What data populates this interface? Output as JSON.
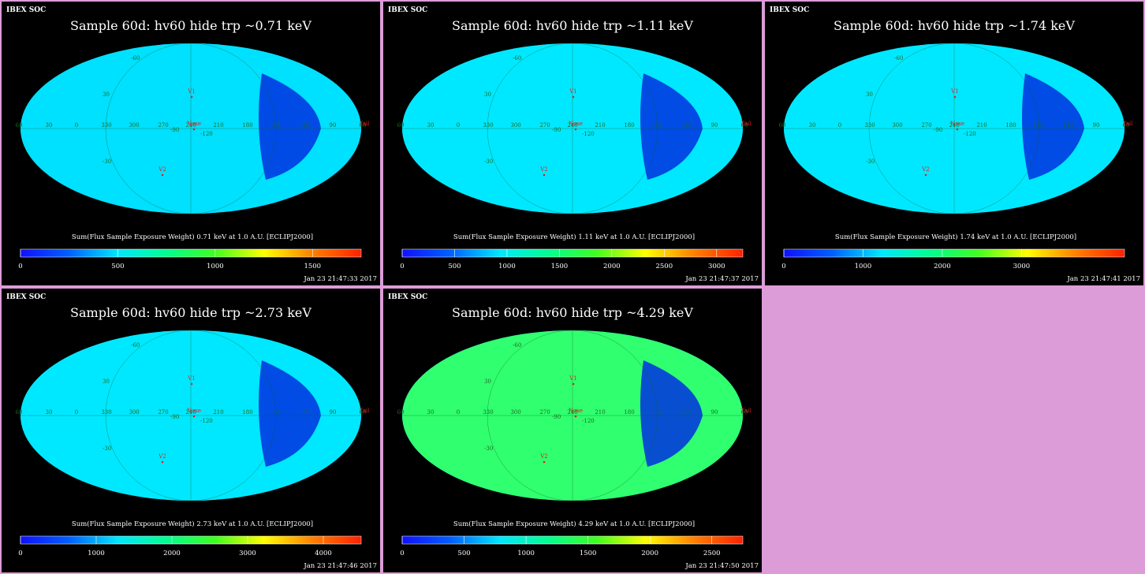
{
  "panels": [
    {
      "source": "IBEX SOC",
      "title": "Sample 60d: hv60 hide trp ~0.71 keV",
      "caption": "Sum(Flux Sample Exposure Weight)  0.71 keV at 1.0 A.U. [ECLIPJ2000]",
      "timestamp": "Jan 23 21:47:33 2017",
      "ticks": [
        "0",
        "500",
        "1000",
        "1500"
      ],
      "chart_data": {
        "type": "heatmap",
        "energy_keV": 0.71,
        "colorbar_range": [
          0,
          1750
        ],
        "colorbar_ticks": [
          0,
          500,
          1000,
          1500
        ],
        "projection": "mollweide"
      }
    },
    {
      "source": "IBEX SOC",
      "title": "Sample 60d: hv60 hide trp ~1.11 keV",
      "caption": "Sum(Flux Sample Exposure Weight)  1.11 keV at 1.0 A.U. [ECLIPJ2000]",
      "timestamp": "Jan 23 21:47:37 2017",
      "ticks": [
        "0",
        "500",
        "1000",
        "1500",
        "2000",
        "2500",
        "3000"
      ],
      "chart_data": {
        "type": "heatmap",
        "energy_keV": 1.11,
        "colorbar_range": [
          0,
          3250
        ],
        "colorbar_ticks": [
          0,
          500,
          1000,
          1500,
          2000,
          2500,
          3000
        ],
        "projection": "mollweide"
      }
    },
    {
      "source": "IBEX SOC",
      "title": "Sample 60d: hv60 hide trp ~1.74 keV",
      "caption": "Sum(Flux Sample Exposure Weight)  1.74 keV at 1.0 A.U. [ECLIPJ2000]",
      "timestamp": "Jan 23 21:47:41 2017",
      "ticks": [
        "0",
        "1000",
        "2000",
        "3000"
      ],
      "chart_data": {
        "type": "heatmap",
        "energy_keV": 1.74,
        "colorbar_range": [
          0,
          4300
        ],
        "colorbar_ticks": [
          0,
          1000,
          2000,
          3000
        ],
        "projection": "mollweide"
      }
    },
    {
      "source": "IBEX SOC",
      "title": "Sample 60d: hv60 hide trp ~2.73 keV",
      "caption": "Sum(Flux Sample Exposure Weight)  2.73 keV at 1.0 A.U. [ECLIPJ2000]",
      "timestamp": "Jan 23 21:47:46 2017",
      "ticks": [
        "0",
        "1000",
        "2000",
        "3000",
        "4000"
      ],
      "chart_data": {
        "type": "heatmap",
        "energy_keV": 2.73,
        "colorbar_range": [
          0,
          4500
        ],
        "colorbar_ticks": [
          0,
          1000,
          2000,
          3000,
          4000
        ],
        "projection": "mollweide"
      }
    },
    {
      "source": "IBEX SOC",
      "title": "Sample 60d: hv60 hide trp ~4.29 keV",
      "caption": "Sum(Flux Sample Exposure Weight)  4.29 keV at 1.0 A.U. [ECLIPJ2000]",
      "timestamp": "Jan 23 21:47:50 2017",
      "ticks": [
        "0",
        "500",
        "1000",
        "1500",
        "2000",
        "2500"
      ],
      "chart_data": {
        "type": "heatmap",
        "energy_keV": 4.29,
        "colorbar_range": [
          0,
          2750
        ],
        "colorbar_ticks": [
          0,
          500,
          1000,
          1500,
          2000,
          2500
        ],
        "projection": "mollweide"
      }
    }
  ],
  "map_labels": {
    "grid": [
      "60",
      "30",
      "0",
      "330",
      "300",
      "270",
      "240",
      "210",
      "180",
      "150",
      "120",
      "90",
      "60",
      "30",
      "-30",
      "-60",
      "-90",
      "-120"
    ],
    "markers": {
      "v1": "V1",
      "v2": "V2",
      "nose": "Nose",
      "tail": "Tail"
    }
  },
  "colormap": [
    "#1010ff",
    "#0060ff",
    "#00e8ff",
    "#00ff90",
    "#40ff20",
    "#ffff00",
    "#ff8000",
    "#ff2000"
  ]
}
